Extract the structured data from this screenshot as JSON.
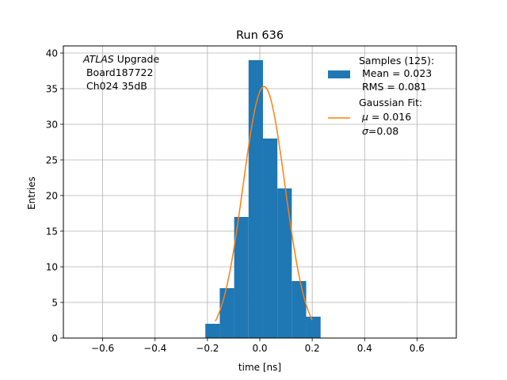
{
  "chart_data": {
    "type": "bar",
    "title": "Run 636",
    "xlabel": "time [ns]",
    "ylabel": "Entries",
    "xlim": [
      -0.75,
      0.75
    ],
    "ylim": [
      0,
      41
    ],
    "grid": true,
    "xticks": [
      -0.6,
      -0.4,
      -0.2,
      0,
      0.2,
      0.4,
      0.6
    ],
    "xtick_labels": [
      "−0.6",
      "−0.4",
      "−0.2",
      "0.0",
      "0.2",
      "0.4",
      "0.6"
    ],
    "yticks": [
      0,
      5,
      10,
      15,
      20,
      25,
      30,
      35,
      40
    ],
    "ytick_labels": [
      "0",
      "5",
      "10",
      "15",
      "20",
      "25",
      "30",
      "35",
      "40"
    ],
    "annotation": {
      "line1_italic": "ATLAS",
      "line1_rest": " Upgrade",
      "line2": " Board187722",
      "line3": " Ch024 35dB"
    },
    "histogram": {
      "color": "#1f77b4",
      "bin_edges": [
        -0.208,
        -0.153,
        -0.098,
        -0.043,
        0.012,
        0.067,
        0.122,
        0.177,
        0.232
      ],
      "counts": [
        2,
        7,
        17,
        39,
        28,
        21,
        8,
        3
      ]
    },
    "gaussian_fit": {
      "color": "#ff7f0e",
      "mu": 0.016,
      "sigma": 0.08,
      "amplitude": 35.3,
      "x_range": [
        -0.17,
        0.2
      ]
    },
    "legend": {
      "position": "top-right",
      "samples": [
        "Samples (125):",
        " Mean = 0.023",
        " RMS = 0.081"
      ],
      "fit_line1": "Gaussian Fit:",
      "fit_mu_symbol": "μ",
      "fit_mu_rest": " = 0.016",
      "fit_sigma_symbol": "σ",
      "fit_sigma_rest": "=0.08"
    }
  }
}
